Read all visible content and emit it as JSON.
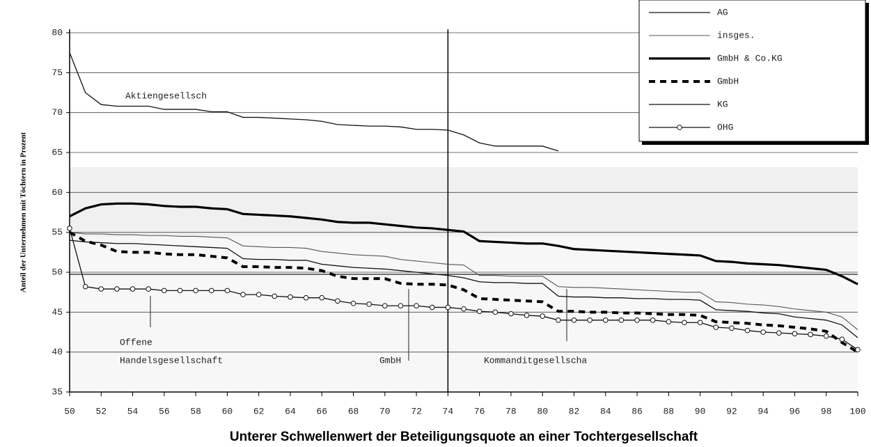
{
  "chart_data": {
    "type": "line",
    "x_label": "Unterer Schwellenwert der Beteiligungsquote an einer Tochtergesellschaft",
    "y_label": "Anteil der Unternehmen mit Töchtern in Prozent",
    "x": [
      50,
      51,
      52,
      53,
      54,
      55,
      56,
      57,
      58,
      59,
      60,
      61,
      62,
      63,
      64,
      65,
      66,
      67,
      68,
      69,
      70,
      71,
      72,
      73,
      74,
      75,
      76,
      77,
      78,
      79,
      80,
      81,
      82,
      83,
      84,
      85,
      86,
      87,
      88,
      89,
      90,
      91,
      92,
      93,
      94,
      95,
      96,
      97,
      98,
      99,
      100
    ],
    "xlim": [
      50,
      100
    ],
    "xticks": [
      50,
      52,
      54,
      56,
      58,
      60,
      62,
      64,
      66,
      68,
      70,
      72,
      74,
      76,
      78,
      80,
      82,
      84,
      86,
      88,
      90,
      92,
      94,
      96,
      98,
      100
    ],
    "ylim": [
      35,
      80
    ],
    "yticks": [
      35,
      40,
      45,
      50,
      55,
      60,
      65,
      70,
      75,
      80
    ],
    "grid": true,
    "legend": "upper right",
    "series": [
      {
        "name": "AG",
        "color": "#111111",
        "width": 1.3,
        "dash": "solid",
        "marker": "none",
        "values": [
          77.5,
          72.5,
          71,
          70.8,
          70.8,
          70.8,
          70.4,
          70.4,
          70.4,
          70.1,
          70.1,
          69.4,
          69.4,
          69.3,
          69.2,
          69.1,
          68.9,
          68.5,
          68.4,
          68.3,
          68.3,
          68.2,
          67.9,
          67.9,
          67.8,
          67.2,
          66.2,
          65.8,
          65.8,
          65.8,
          65.8,
          65.2,
          null,
          null,
          null,
          null,
          null,
          null,
          null,
          null,
          null,
          null,
          null,
          null,
          null,
          null,
          null,
          null,
          null,
          null,
          null
        ]
      },
      {
        "name": "insges.",
        "color": "#555555",
        "width": 1.1,
        "dash": "solid",
        "marker": "none",
        "values": [
          55,
          54.8,
          54.8,
          54.7,
          54.7,
          54.6,
          54.6,
          54.5,
          54.5,
          54.4,
          54.3,
          53.3,
          53.2,
          53.1,
          53.1,
          53,
          52.6,
          52.4,
          52.2,
          52.1,
          52,
          51.6,
          51.4,
          51.2,
          51,
          50.9,
          49.6,
          49.6,
          49.5,
          49.5,
          49.5,
          48.2,
          48.1,
          48.1,
          48,
          47.9,
          47.8,
          47.7,
          47.6,
          47.5,
          47.5,
          46.3,
          46.2,
          46,
          45.9,
          45.7,
          45.4,
          45.2,
          45,
          44.4,
          42.8
        ]
      },
      {
        "name": "GmbH & Co.KG",
        "color": "#000000",
        "width": 3.2,
        "dash": "solid",
        "marker": "none",
        "values": [
          57,
          58,
          58.5,
          58.6,
          58.6,
          58.5,
          58.3,
          58.2,
          58.2,
          58,
          57.9,
          57.3,
          57.2,
          57.1,
          57,
          56.8,
          56.6,
          56.3,
          56.2,
          56.2,
          56,
          55.8,
          55.6,
          55.5,
          55.3,
          55.1,
          53.9,
          53.8,
          53.7,
          53.6,
          53.6,
          53.3,
          52.9,
          52.8,
          52.7,
          52.6,
          52.5,
          52.4,
          52.3,
          52.2,
          52.1,
          51.4,
          51.3,
          51.1,
          51,
          50.9,
          50.7,
          50.5,
          50.3,
          49.5,
          48.5
        ]
      },
      {
        "name": "GmbH",
        "color": "#000000",
        "width": 4,
        "dash": "dashed",
        "marker": "none",
        "values": [
          55,
          53.9,
          53.4,
          52.6,
          52.5,
          52.5,
          52.3,
          52.2,
          52.2,
          52,
          51.8,
          50.7,
          50.7,
          50.6,
          50.6,
          50.5,
          50.2,
          49.5,
          49.2,
          49.2,
          49.2,
          48.6,
          48.5,
          48.5,
          48.4,
          47.8,
          46.7,
          46.6,
          46.5,
          46.4,
          46.3,
          45.1,
          45.1,
          45,
          45,
          44.9,
          44.9,
          44.8,
          44.7,
          44.7,
          44.6,
          43.8,
          43.7,
          43.6,
          43.4,
          43.3,
          43.1,
          42.9,
          42.6,
          41.2,
          40
        ]
      },
      {
        "name": "KG",
        "color": "#111111",
        "width": 1.3,
        "dash": "solid",
        "marker": "none",
        "values": [
          54,
          53.8,
          53.7,
          53.6,
          53.6,
          53.5,
          53.4,
          53.3,
          53.2,
          53.1,
          53,
          51.7,
          51.6,
          51.6,
          51.5,
          51.5,
          51,
          50.8,
          50.6,
          50.5,
          50.4,
          50.2,
          50,
          49.8,
          49.6,
          49.3,
          48.8,
          48.7,
          48.7,
          48.6,
          48.6,
          47,
          46.9,
          46.9,
          46.8,
          46.8,
          46.7,
          46.7,
          46.6,
          46.6,
          46.5,
          45.3,
          45.2,
          45.1,
          44.9,
          44.8,
          44.4,
          44.2,
          44,
          43.4,
          41.8
        ]
      },
      {
        "name": "OHG",
        "color": "#111111",
        "width": 1.3,
        "dash": "solid",
        "marker": "circle",
        "values": [
          55.5,
          48.2,
          47.9,
          47.9,
          47.9,
          47.9,
          47.7,
          47.7,
          47.7,
          47.7,
          47.7,
          47.2,
          47.2,
          47,
          46.9,
          46.8,
          46.8,
          46.4,
          46.1,
          46,
          45.8,
          45.8,
          45.8,
          45.6,
          45.6,
          45.4,
          45.1,
          45,
          44.8,
          44.6,
          44.5,
          44,
          44,
          44,
          44,
          44,
          44,
          44,
          43.8,
          43.7,
          43.7,
          43.1,
          43,
          42.7,
          42.5,
          42.4,
          42.3,
          42.2,
          42,
          41.6,
          40.3
        ]
      }
    ],
    "annotations": [
      "Aktiengesellsch",
      "Offene",
      "Handelsgesellschaft",
      "GmbH",
      "Kommanditgesellscha"
    ]
  }
}
